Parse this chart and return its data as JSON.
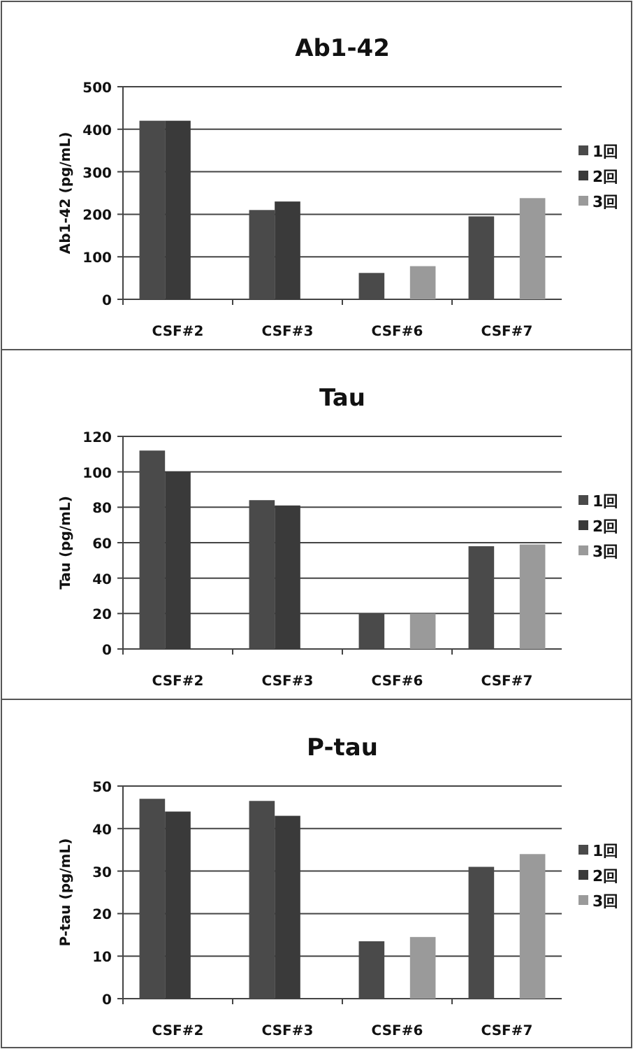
{
  "chart_data": [
    {
      "type": "bar",
      "title": "Ab1-42",
      "ylabel": "Ab1-42 (pg/mL)",
      "categories": [
        "CSF#2",
        "CSF#3",
        "CSF#6",
        "CSF#7"
      ],
      "series": [
        {
          "name": "1回",
          "color": "#4a4a4a",
          "values": [
            420,
            210,
            62,
            195
          ]
        },
        {
          "name": "2回",
          "color": "#3a3a3a",
          "values": [
            420,
            230,
            null,
            null
          ]
        },
        {
          "name": "3回",
          "color": "#9a9a9a",
          "values": [
            null,
            null,
            78,
            238
          ]
        }
      ],
      "ylim": [
        0,
        500
      ],
      "yticks": [
        0,
        100,
        200,
        300,
        400,
        500
      ],
      "grid": "y",
      "legend": "right"
    },
    {
      "type": "bar",
      "title": "Tau",
      "ylabel": "Tau (pg/mL)",
      "categories": [
        "CSF#2",
        "CSF#3",
        "CSF#6",
        "CSF#7"
      ],
      "series": [
        {
          "name": "1回",
          "color": "#4a4a4a",
          "values": [
            112,
            84,
            20,
            58
          ]
        },
        {
          "name": "2回",
          "color": "#3a3a3a",
          "values": [
            100,
            81,
            null,
            null
          ]
        },
        {
          "name": "3回",
          "color": "#9a9a9a",
          "values": [
            null,
            null,
            20,
            59
          ]
        }
      ],
      "ylim": [
        0,
        120
      ],
      "yticks": [
        0,
        20,
        40,
        60,
        80,
        100,
        120
      ],
      "grid": "y",
      "legend": "right"
    },
    {
      "type": "bar",
      "title": "P-tau",
      "ylabel": "P-tau (pg/mL)",
      "categories": [
        "CSF#2",
        "CSF#3",
        "CSF#6",
        "CSF#7"
      ],
      "series": [
        {
          "name": "1回",
          "color": "#4a4a4a",
          "values": [
            47,
            46.5,
            13.5,
            31
          ]
        },
        {
          "name": "2回",
          "color": "#3a3a3a",
          "values": [
            44,
            43,
            null,
            null
          ]
        },
        {
          "name": "3回",
          "color": "#9a9a9a",
          "values": [
            null,
            null,
            14.5,
            34
          ]
        }
      ],
      "ylim": [
        0,
        50
      ],
      "yticks": [
        0,
        10,
        20,
        30,
        40,
        50
      ],
      "grid": "y",
      "legend": "right"
    }
  ]
}
